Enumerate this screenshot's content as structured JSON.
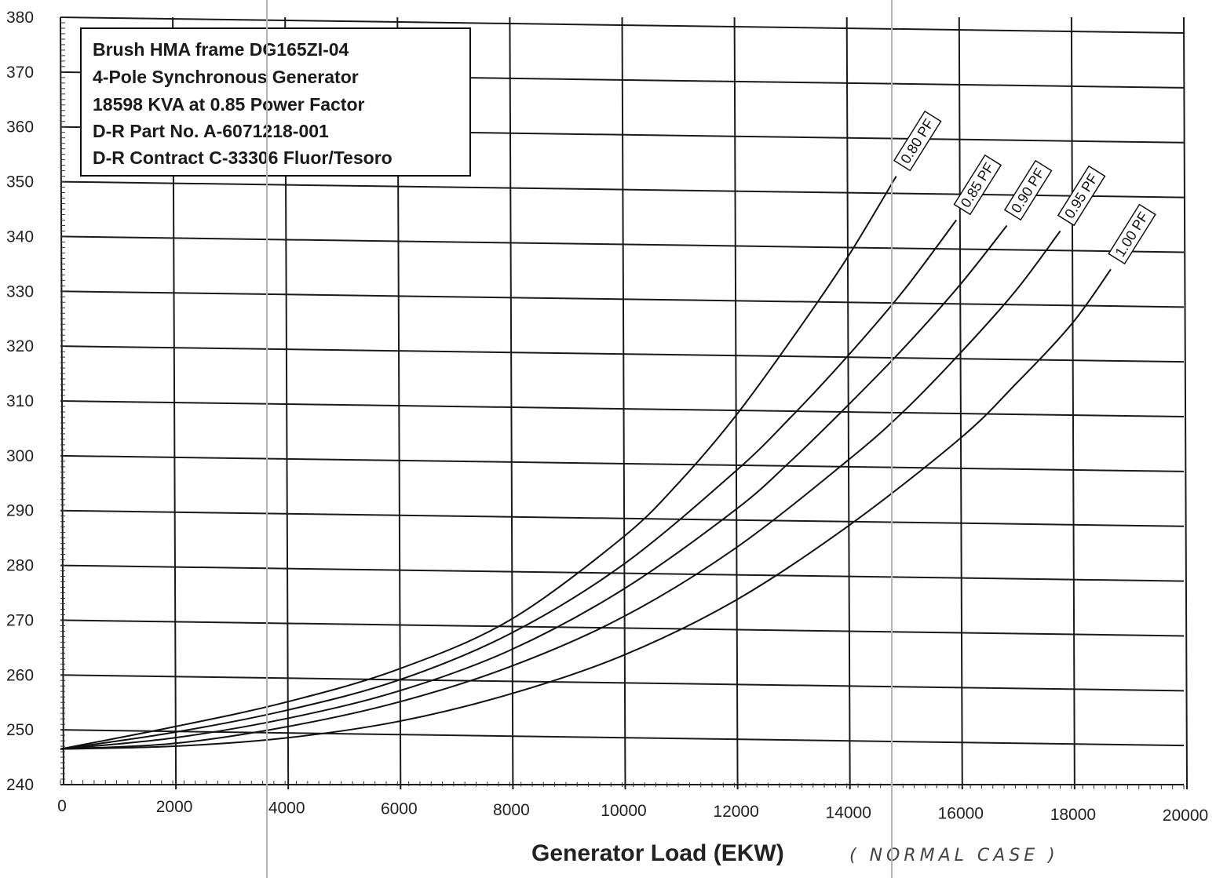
{
  "chart_data": {
    "type": "line",
    "title_box": [
      "Brush HMA frame DG165ZI-04",
      "4-Pole Synchronous Generator",
      "18598 KVA at 0.85 Power Factor",
      "D-R Part No. A-6071218-001",
      "D-R Contract C-33306 Fluor/Tesoro"
    ],
    "xlabel": "Generator Load (EKW)",
    "xlabel_annotation": "( NORMAL CASE )",
    "ylabel": "",
    "xlim": [
      0,
      20000
    ],
    "ylim": [
      240,
      380
    ],
    "xticks": [
      "0",
      "2000",
      "4000",
      "6000",
      "8000",
      "10000",
      "12000",
      "14000",
      "16000",
      "18000",
      "20000"
    ],
    "yticks": [
      "240",
      "250",
      "260",
      "270",
      "280",
      "290",
      "300",
      "310",
      "320",
      "330",
      "340",
      "350",
      "360",
      "370",
      "380"
    ],
    "grid": true,
    "series": [
      {
        "name": "0.80 PF",
        "x": [
          0,
          2000,
          4000,
          6000,
          8000,
          10000,
          11000,
          12000,
          13000,
          14000,
          14880
        ],
        "y": [
          246.5,
          250.5,
          255,
          261,
          270,
          285,
          295,
          307,
          321,
          336,
          351
        ]
      },
      {
        "name": "0.85 PF",
        "x": [
          0,
          2000,
          4000,
          6000,
          8000,
          10000,
          12000,
          13000,
          14000,
          15000,
          15950
        ],
        "y": [
          246.5,
          249.5,
          253.5,
          259,
          267.5,
          280,
          297,
          307,
          318,
          330,
          343
        ]
      },
      {
        "name": "0.90 PF",
        "x": [
          0,
          2000,
          4000,
          6000,
          8000,
          10000,
          12000,
          13000,
          14000,
          15000,
          16000,
          16850
        ],
        "y": [
          246.5,
          248.5,
          252,
          257,
          264.5,
          275.5,
          290,
          299,
          309,
          319.5,
          331,
          342
        ]
      },
      {
        "name": "0.95 PF",
        "x": [
          0,
          2000,
          4000,
          6000,
          8000,
          10000,
          12000,
          14000,
          15000,
          16000,
          17000,
          17800
        ],
        "y": [
          246.5,
          247.5,
          250.5,
          255,
          261.5,
          270.5,
          283,
          299,
          308,
          318.5,
          330,
          341
        ]
      },
      {
        "name": "1.00 PF",
        "x": [
          0,
          2000,
          4000,
          6000,
          8000,
          10000,
          12000,
          14000,
          16000,
          17000,
          18000,
          18700
        ],
        "y": [
          246.5,
          247,
          248.5,
          251.5,
          256.5,
          263.5,
          273.5,
          287,
          303,
          313,
          324,
          334
        ]
      }
    ]
  }
}
